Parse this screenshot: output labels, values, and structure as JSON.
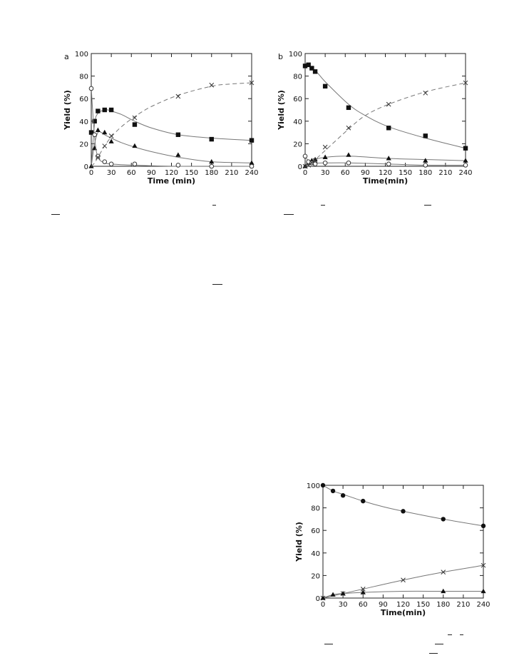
{
  "chart_data": [
    {
      "panel_label": "a",
      "type": "line",
      "xlabel": "Time (min)",
      "ylabel": "Yield (%)",
      "xlim": [
        0,
        240
      ],
      "ylim": [
        0,
        100
      ],
      "xticks": [
        0,
        30,
        60,
        90,
        120,
        150,
        180,
        210,
        240
      ],
      "yticks": [
        0,
        20,
        40,
        60,
        80,
        100
      ],
      "grid": false,
      "series": [
        {
          "marker": "filled-square",
          "line": "solid",
          "x": [
            0,
            5,
            10,
            20,
            30,
            65,
            130,
            180,
            240
          ],
          "y": [
            30,
            40,
            49,
            50,
            50,
            37,
            28,
            24,
            23
          ],
          "curve_x": [
            0,
            5,
            10,
            15,
            20,
            25,
            30,
            45,
            65,
            90,
            130,
            180,
            240
          ],
          "curve_y": [
            0,
            38,
            47,
            49,
            50,
            50,
            49,
            46,
            40,
            34,
            28,
            25,
            23
          ]
        },
        {
          "marker": "filled-triangle",
          "line": "solid",
          "x": [
            0,
            5,
            10,
            20,
            30,
            65,
            130,
            180,
            240
          ],
          "y": [
            0,
            16,
            32,
            30,
            22,
            18,
            10,
            4,
            3
          ],
          "curve_x": [
            0,
            5,
            10,
            15,
            20,
            30,
            45,
            65,
            90,
            130,
            180,
            240
          ],
          "curve_y": [
            0,
            20,
            30,
            30,
            28,
            25,
            21,
            17,
            13,
            8,
            4,
            3
          ]
        },
        {
          "marker": "open-circle",
          "line": "solid",
          "x": [
            0,
            5,
            10,
            20,
            30,
            65,
            130,
            180,
            240
          ],
          "y": [
            69,
            28,
            9,
            4,
            2,
            2,
            1,
            0,
            0
          ],
          "curve_x": [
            0,
            2,
            5,
            8,
            12,
            20,
            30,
            65,
            130,
            240
          ],
          "curve_y": [
            70,
            50,
            26,
            12,
            6,
            3,
            2,
            1,
            0,
            0
          ]
        },
        {
          "marker": "cross",
          "line": "dashed",
          "x": [
            10,
            20,
            30,
            65,
            130,
            180,
            240
          ],
          "y": [
            8,
            18,
            27,
            43,
            62,
            72,
            74
          ],
          "curve_x": [
            0,
            5,
            10,
            20,
            30,
            45,
            65,
            90,
            130,
            180,
            210,
            240
          ],
          "curve_y": [
            0,
            3,
            8,
            18,
            26,
            35,
            44,
            53,
            63,
            71,
            73,
            74
          ]
        }
      ]
    },
    {
      "panel_label": "b",
      "type": "line",
      "xlabel": "Time(min)",
      "ylabel": "Yield (%)",
      "xlim": [
        0,
        240
      ],
      "ylim": [
        0,
        100
      ],
      "xticks": [
        0,
        30,
        60,
        90,
        120,
        150,
        180,
        210,
        240
      ],
      "yticks": [
        0,
        20,
        40,
        60,
        80,
        100
      ],
      "grid": false,
      "series": [
        {
          "marker": "filled-square",
          "line": "solid",
          "x": [
            0,
            5,
            10,
            15,
            30,
            65,
            125,
            180,
            240
          ],
          "y": [
            89,
            90,
            87,
            84,
            71,
            52,
            34,
            27,
            16
          ],
          "curve_x": [
            0,
            15,
            30,
            65,
            90,
            125,
            180,
            240
          ],
          "curve_y": [
            90,
            85,
            75,
            55,
            45,
            35,
            25,
            16
          ]
        },
        {
          "marker": "filled-triangle",
          "line": "solid",
          "x": [
            0,
            5,
            10,
            15,
            30,
            65,
            125,
            180,
            240
          ],
          "y": [
            0,
            3,
            5,
            6,
            8,
            10,
            7,
            5,
            5
          ],
          "curve_x": [
            0,
            5,
            15,
            30,
            65,
            125,
            180,
            240
          ],
          "curve_y": [
            0,
            3,
            6,
            8,
            9,
            7,
            6,
            5
          ]
        },
        {
          "marker": "open-circle",
          "line": "solid",
          "x": [
            0,
            5,
            10,
            15,
            30,
            65,
            125,
            180,
            240
          ],
          "y": [
            9,
            4,
            3,
            2,
            3,
            3,
            2,
            1,
            1
          ],
          "curve_x": [
            0,
            5,
            15,
            30,
            65,
            125,
            180,
            240
          ],
          "curve_y": [
            9,
            5,
            3,
            3,
            3,
            2,
            1,
            1
          ]
        },
        {
          "marker": "cross",
          "line": "dashed",
          "x": [
            0,
            5,
            10,
            15,
            30,
            65,
            125,
            180,
            240
          ],
          "y": [
            0,
            1,
            3,
            5,
            17,
            34,
            55,
            65,
            74
          ],
          "curve_x": [
            0,
            15,
            30,
            65,
            90,
            125,
            180,
            240
          ],
          "curve_y": [
            0,
            6,
            14,
            33,
            45,
            55,
            66,
            74
          ]
        }
      ]
    },
    {
      "panel_label": "",
      "type": "line",
      "xlabel": "Time(min)",
      "ylabel": "Yield (%)",
      "xlim": [
        0,
        240
      ],
      "ylim": [
        0,
        100
      ],
      "xticks": [
        0,
        30,
        60,
        90,
        120,
        150,
        180,
        210,
        240
      ],
      "yticks": [
        0,
        20,
        40,
        60,
        80,
        100
      ],
      "grid": false,
      "series": [
        {
          "marker": "filled-circle",
          "line": "solid",
          "x": [
            0,
            15,
            30,
            60,
            120,
            180,
            240
          ],
          "y": [
            100,
            95,
            91,
            86,
            77,
            70,
            64
          ],
          "curve_x": [
            0,
            15,
            30,
            60,
            90,
            120,
            180,
            240
          ],
          "curve_y": [
            100,
            95,
            92,
            86,
            81,
            77,
            70,
            64
          ]
        },
        {
          "marker": "cross",
          "line": "solid",
          "x": [
            0,
            30,
            60,
            120,
            180,
            240
          ],
          "y": [
            0,
            4,
            8,
            16,
            23,
            29
          ],
          "curve_x": [
            0,
            30,
            60,
            120,
            180,
            240
          ],
          "curve_y": [
            0,
            4,
            8,
            16,
            23,
            29
          ]
        },
        {
          "marker": "filled-triangle",
          "line": "solid",
          "x": [
            0,
            15,
            30,
            60,
            180,
            240
          ],
          "y": [
            0,
            3,
            4,
            5,
            6,
            6
          ],
          "curve_x": [
            0,
            15,
            30,
            60,
            120,
            180,
            240
          ],
          "curve_y": [
            0,
            3,
            4,
            5,
            6,
            6,
            6
          ]
        }
      ]
    }
  ]
}
